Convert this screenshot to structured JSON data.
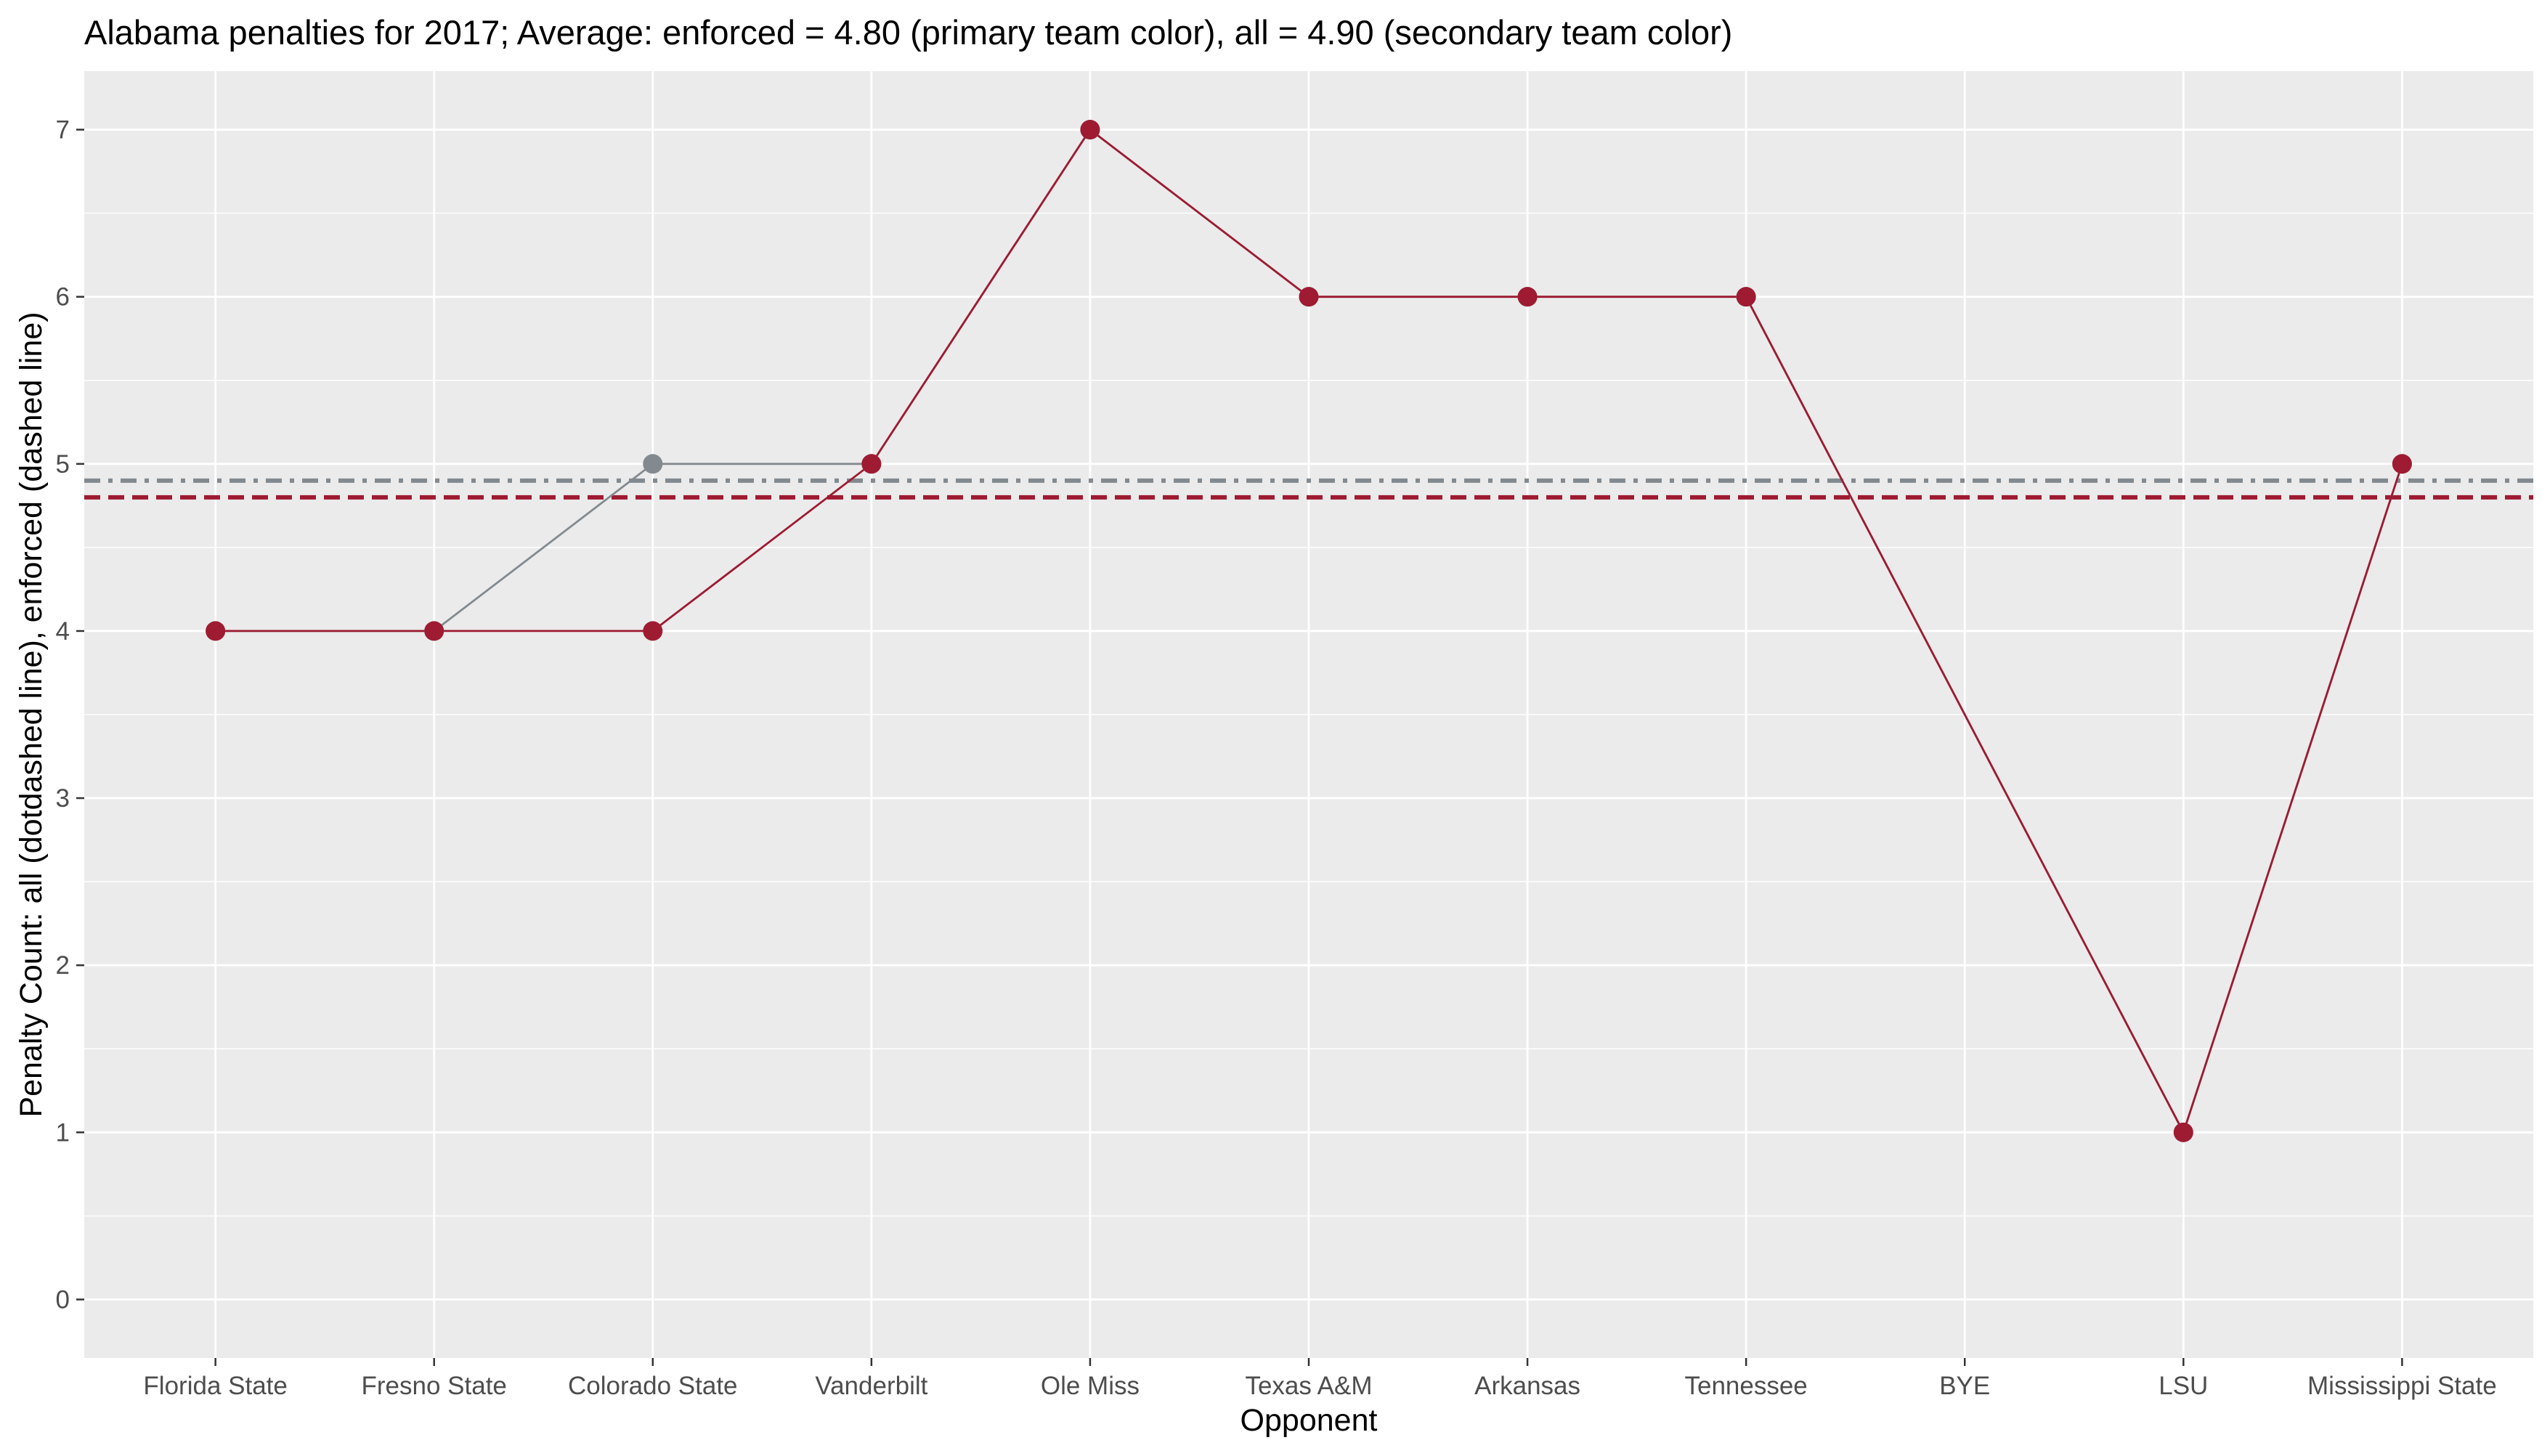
{
  "chart_data": {
    "type": "line",
    "title": "Alabama penalties for 2017; Average: enforced = 4.80 (primary team color), all = 4.90 (secondary team color)",
    "xlabel": "Opponent",
    "ylabel": "Penalty Count: all (dotdashed line), enforced (dashed line)",
    "categories": [
      "Florida State",
      "Fresno State",
      "Colorado State",
      "Vanderbilt",
      "Ole Miss",
      "Texas A&M",
      "Arkansas",
      "Tennessee",
      "BYE",
      "LSU",
      "Mississippi State"
    ],
    "ylim": [
      -0.35,
      7.35
    ],
    "yticks": [
      0,
      1,
      2,
      3,
      4,
      5,
      6,
      7
    ],
    "grid": true,
    "series": [
      {
        "name": "all",
        "color": "#828A8F",
        "x": [
          "Florida State",
          "Fresno State",
          "Colorado State",
          "Vanderbilt",
          "Ole Miss",
          "Texas A&M",
          "Arkansas",
          "Tennessee",
          "LSU",
          "Mississippi State"
        ],
        "values": [
          4,
          4,
          5,
          5,
          7,
          6,
          6,
          6,
          1,
          5
        ]
      },
      {
        "name": "enforced",
        "color": "#9E1B32",
        "x": [
          "Florida State",
          "Fresno State",
          "Colorado State",
          "Vanderbilt",
          "Ole Miss",
          "Texas A&M",
          "Arkansas",
          "Tennessee",
          "LSU",
          "Mississippi State"
        ],
        "values": [
          4,
          4,
          4,
          5,
          7,
          6,
          6,
          6,
          1,
          5
        ]
      }
    ],
    "reference_lines": [
      {
        "name": "all average",
        "value": 4.9,
        "style": "dotdash",
        "color": "#828A8F"
      },
      {
        "name": "enforced average",
        "value": 4.8,
        "style": "dashed",
        "color": "#9E1B32"
      }
    ],
    "colors": {
      "panel": "#EBEBEB",
      "grid": "#FFFFFF",
      "tick_text": "#4D4D4D",
      "tick_mark": "#333333"
    }
  }
}
